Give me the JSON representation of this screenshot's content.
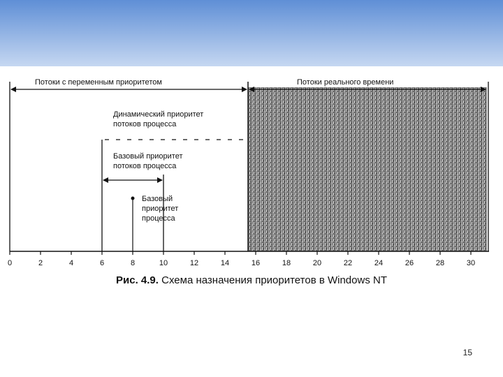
{
  "slide": {
    "page_number": "15",
    "caption_prefix": "Рис. 4.9.",
    "caption_text": "Схема назначения приоритетов в Windows NT"
  },
  "diagram": {
    "axis": {
      "min": 0,
      "max": 31,
      "tick_values": [
        0,
        2,
        4,
        6,
        8,
        10,
        12,
        14,
        16,
        18,
        20,
        22,
        24,
        26,
        28,
        30
      ],
      "tick_labels": [
        "0",
        "2",
        "4",
        "6",
        "8",
        "10",
        "12",
        "14",
        "16",
        "18",
        "20",
        "22",
        "24",
        "26",
        "28",
        "30"
      ]
    },
    "variable_threads": {
      "label": "Потоки с переменным приоритетом",
      "from": 0,
      "to": 15.5
    },
    "realtime_threads": {
      "label": "Потоки реального времени",
      "from": 15.5,
      "to": 31
    },
    "dynamic_priority": {
      "label_line1": "Динамический приоритет",
      "label_line2": "потоков процесса",
      "from": 6,
      "to": 15.5
    },
    "base_thread_priority": {
      "label_line1": "Базовый приоритет",
      "label_line2": "потоков процесса",
      "from": 6,
      "to": 10
    },
    "process_base_priority": {
      "label_line1": "Базовый",
      "label_line2": "приоритет",
      "label_line3": "процесса",
      "value": 8
    }
  }
}
